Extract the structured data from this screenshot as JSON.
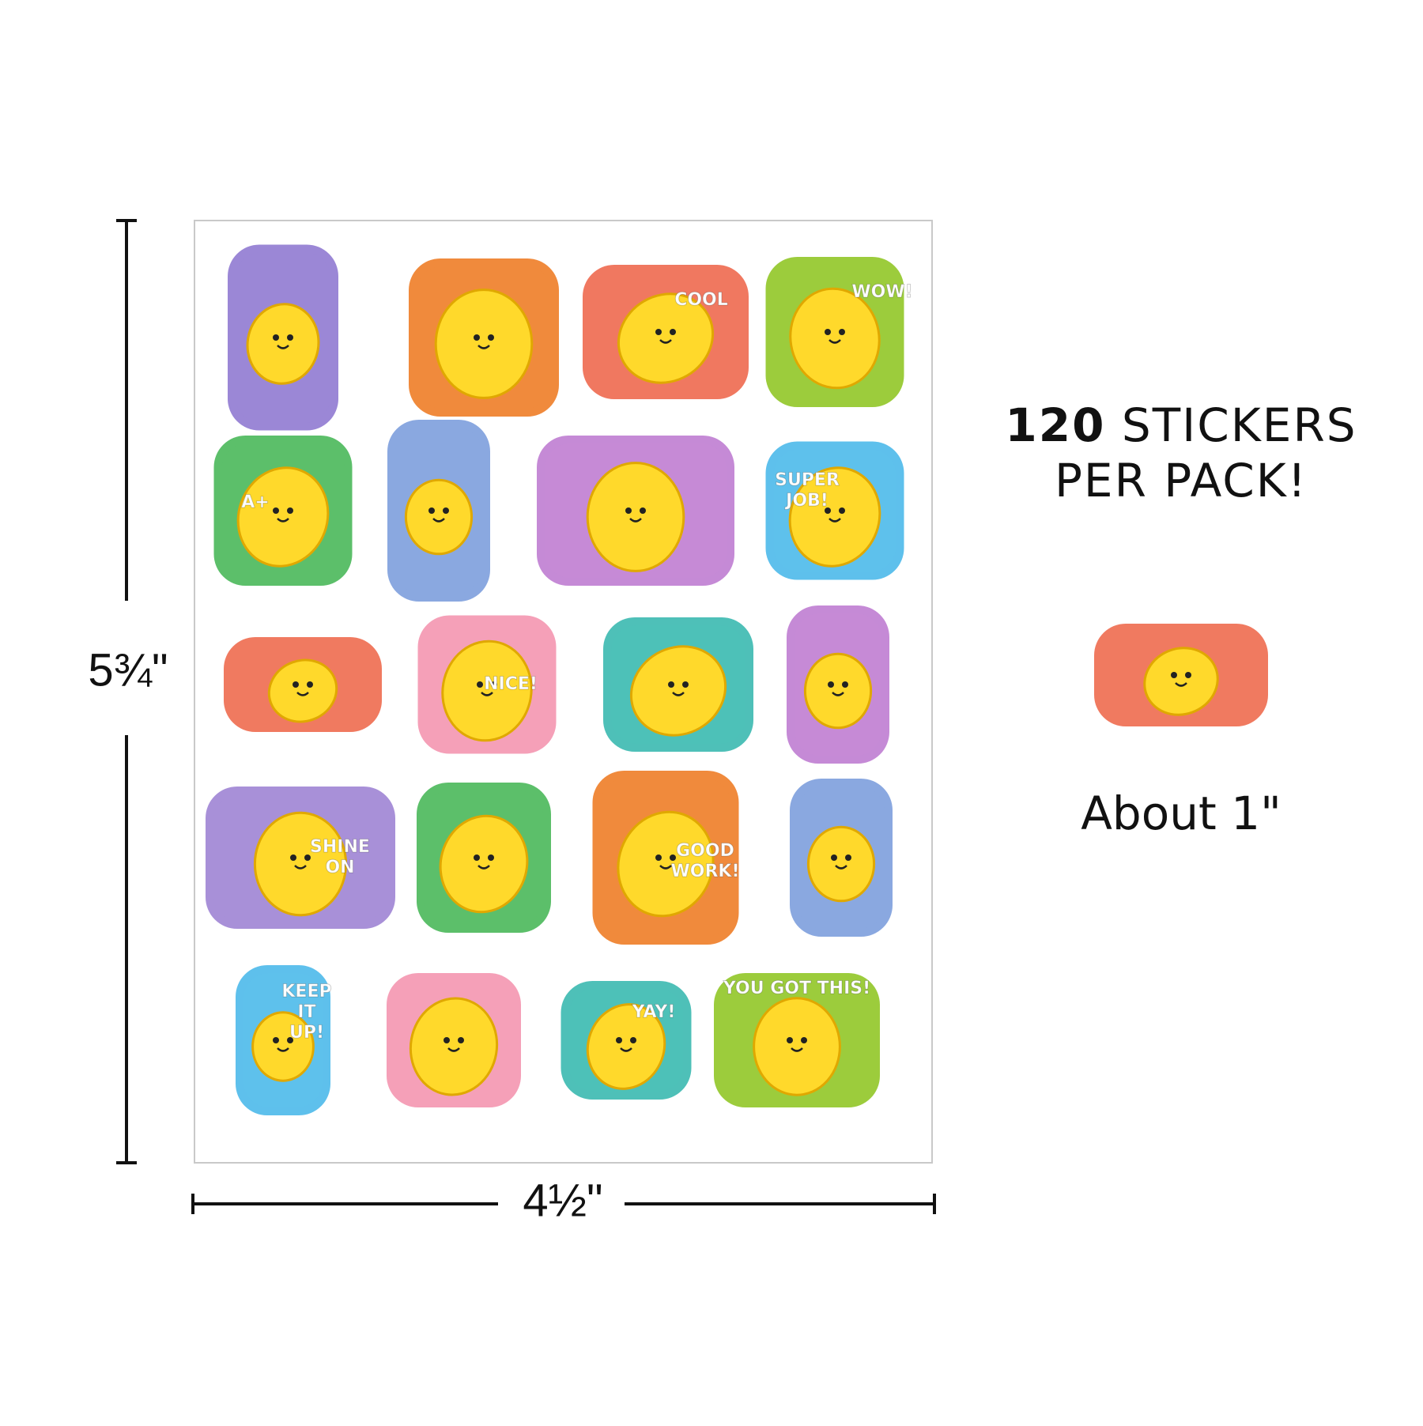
{
  "dimensions": {
    "height": "5¾\"",
    "width": "4½\""
  },
  "headline": {
    "count": "120",
    "line1": "STICKERS",
    "line2": "PER PACK!"
  },
  "sample_caption": "About 1\"",
  "sticker_texts": [
    [
      "COOL"
    ],
    [
      "WOW!"
    ],
    [
      "A+"
    ],
    [
      "SUPER",
      "JOB!"
    ],
    [
      "NICE!"
    ],
    [
      "SHINE",
      "ON"
    ],
    [
      "GOOD",
      "WORK!"
    ],
    [
      "KEEP",
      "IT",
      "UP!"
    ],
    [
      "YAY!"
    ],
    [
      "YOU GOT THIS!"
    ]
  ]
}
